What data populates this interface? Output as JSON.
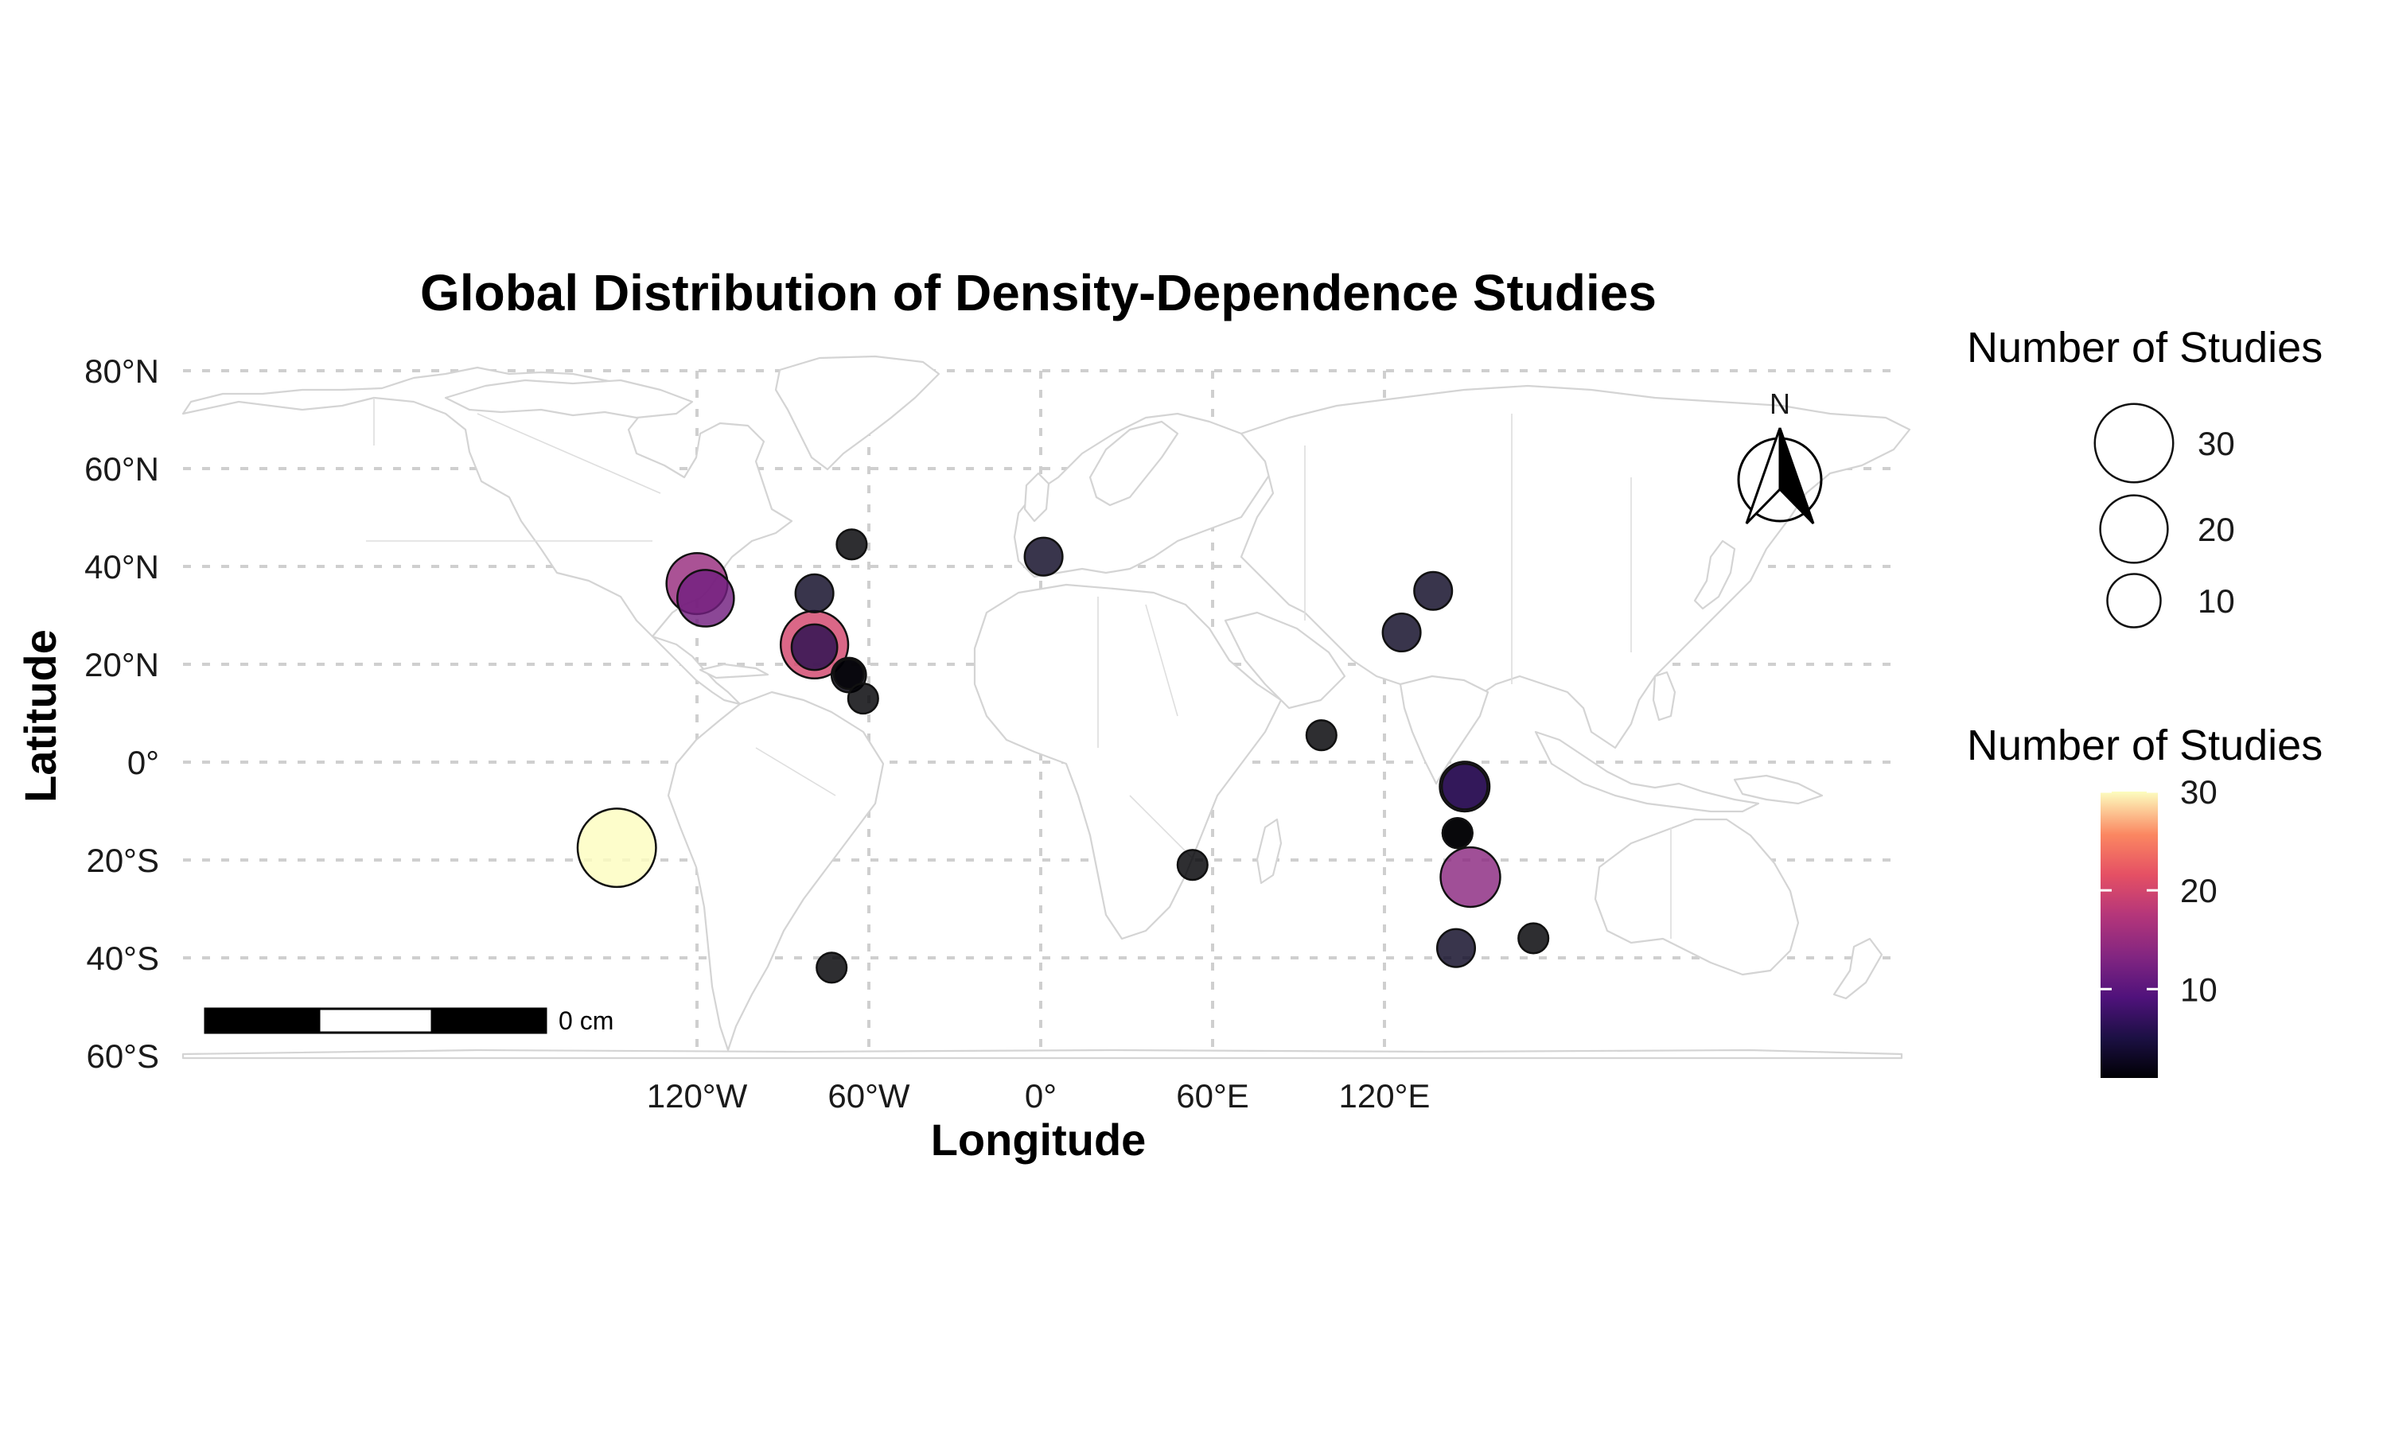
{
  "title": "Global Distribution of Density-Dependence Studies",
  "axes": {
    "x_label": "Longitude",
    "y_label": "Latitude",
    "x_ticks": [
      {
        "value": -120,
        "label": "120°W"
      },
      {
        "value": -60,
        "label": "60°W"
      },
      {
        "value": 0,
        "label": "0°"
      },
      {
        "value": 60,
        "label": "60°E"
      },
      {
        "value": 120,
        "label": "120°E"
      }
    ],
    "y_ticks": [
      {
        "value": 80,
        "label": "80°N"
      },
      {
        "value": 60,
        "label": "60°N"
      },
      {
        "value": 40,
        "label": "40°N"
      },
      {
        "value": 20,
        "label": "20°N"
      },
      {
        "value": 0,
        "label": "0°"
      },
      {
        "value": -20,
        "label": "20°S"
      },
      {
        "value": -40,
        "label": "40°S"
      },
      {
        "value": -60,
        "label": "60°S"
      }
    ],
    "xlim": [
      -180,
      180
    ],
    "ylim": [
      -60,
      80
    ],
    "grid": true
  },
  "legend_size": {
    "title": "Number of Studies",
    "entries": [
      {
        "value": 30,
        "label": "30"
      },
      {
        "value": 20,
        "label": "20"
      },
      {
        "value": 10,
        "label": "10"
      }
    ]
  },
  "legend_color": {
    "title": "Number of Studies",
    "palette": "magma",
    "range": [
      1,
      30
    ],
    "ticks": [
      {
        "value": 30,
        "label": "30"
      },
      {
        "value": 20,
        "label": "20"
      },
      {
        "value": 10,
        "label": "10"
      }
    ]
  },
  "scale_bar": {
    "label": "0 cm"
  },
  "north_arrow": {
    "label": "N"
  },
  "colors": {
    "land_border": "#d4d4d4",
    "grid": "#cfcfcf",
    "point_stroke": "#111111"
  },
  "chart_data": {
    "type": "scatter",
    "points": [
      {
        "lon": -120,
        "lat": 36.5,
        "studies": 15
      },
      {
        "lon": -117,
        "lat": 33.5,
        "studies": 12
      },
      {
        "lon": -148,
        "lat": -17.5,
        "studies": 30
      },
      {
        "lon": -79,
        "lat": 24,
        "studies": 20
      },
      {
        "lon": -79,
        "lat": 23.5,
        "studies": 6
      },
      {
        "lon": -79,
        "lat": 34.5,
        "studies": 3
      },
      {
        "lon": -67,
        "lat": 17.8,
        "studies": 2
      },
      {
        "lon": -67,
        "lat": 18,
        "studies": 1
      },
      {
        "lon": -66,
        "lat": 44.5,
        "studies": 1
      },
      {
        "lon": -62,
        "lat": 13,
        "studies": 1
      },
      {
        "lon": -73,
        "lat": -42,
        "studies": 1
      },
      {
        "lon": 1,
        "lat": 42,
        "studies": 3
      },
      {
        "lon": 53,
        "lat": -21,
        "studies": 1
      },
      {
        "lon": 98,
        "lat": 5.5,
        "studies": 1
      },
      {
        "lon": 126,
        "lat": 26.5,
        "studies": 3
      },
      {
        "lon": 137,
        "lat": 35,
        "studies": 3
      },
      {
        "lon": 148,
        "lat": -5,
        "studies": 8
      },
      {
        "lon": 148,
        "lat": -5,
        "studies": 6
      },
      {
        "lon": 145.5,
        "lat": -14.5,
        "studies": 1
      },
      {
        "lon": 145.5,
        "lat": -14.5,
        "studies": 1
      },
      {
        "lon": 150,
        "lat": -23.5,
        "studies": 14
      },
      {
        "lon": 145,
        "lat": -38,
        "studies": 3
      },
      {
        "lon": 172,
        "lat": -36,
        "studies": 1
      }
    ]
  }
}
